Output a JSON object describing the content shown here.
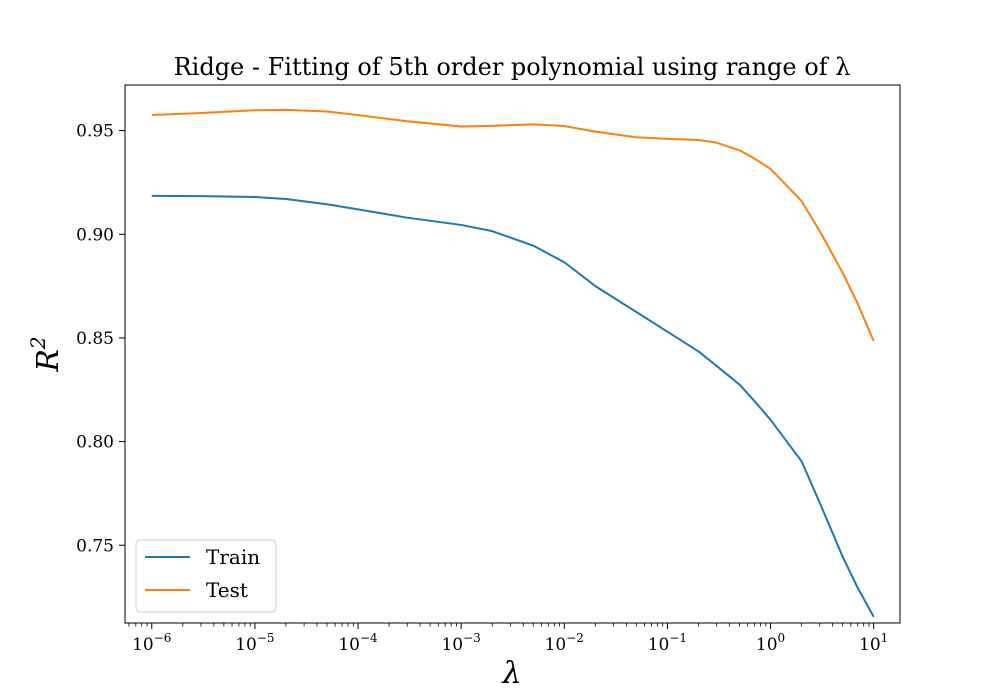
{
  "chart_data": {
    "type": "line",
    "title": "Ridge - Fitting of 5th order polynomial using range of λ",
    "xlabel": "λ",
    "ylabel": "R",
    "ylabel_sup": "2",
    "x_scale": "log",
    "xlim": [
      5.5e-07,
      18
    ],
    "ylim": [
      0.7125,
      0.972
    ],
    "x_ticks": [
      {
        "value": 1e-06,
        "base": "10",
        "exp": "−6"
      },
      {
        "value": 1e-05,
        "base": "10",
        "exp": "−5"
      },
      {
        "value": 0.0001,
        "base": "10",
        "exp": "−4"
      },
      {
        "value": 0.001,
        "base": "10",
        "exp": "−3"
      },
      {
        "value": 0.01,
        "base": "10",
        "exp": "−2"
      },
      {
        "value": 0.1,
        "base": "10",
        "exp": "−1"
      },
      {
        "value": 1,
        "base": "10",
        "exp": "0"
      },
      {
        "value": 10,
        "base": "10",
        "exp": "1"
      }
    ],
    "y_ticks": [
      {
        "value": 0.75,
        "label": "0.75"
      },
      {
        "value": 0.8,
        "label": "0.80"
      },
      {
        "value": 0.85,
        "label": "0.85"
      },
      {
        "value": 0.9,
        "label": "0.90"
      },
      {
        "value": 0.95,
        "label": "0.95"
      }
    ],
    "legend_position": "lower-left",
    "grid": false,
    "series": [
      {
        "name": "Train",
        "color": "#1f77b4",
        "x": [
          1e-06,
          3e-06,
          1e-05,
          2e-05,
          5e-05,
          0.0001,
          0.0003,
          0.001,
          0.002,
          0.005,
          0.01,
          0.02,
          0.05,
          0.1,
          0.2,
          0.3,
          0.5,
          0.7,
          1,
          2,
          3,
          5,
          7,
          10
        ],
        "y": [
          0.9185,
          0.9184,
          0.918,
          0.917,
          0.9145,
          0.912,
          0.908,
          0.9045,
          0.9015,
          0.8945,
          0.8865,
          0.875,
          0.8625,
          0.853,
          0.8435,
          0.8365,
          0.8275,
          0.8195,
          0.8105,
          0.7905,
          0.7705,
          0.7445,
          0.7295,
          0.7155
        ]
      },
      {
        "name": "Test",
        "color": "#ff7f0e",
        "x": [
          1e-06,
          3e-06,
          1e-05,
          2e-05,
          5e-05,
          0.0001,
          0.0003,
          0.001,
          0.002,
          0.005,
          0.01,
          0.02,
          0.05,
          0.1,
          0.2,
          0.3,
          0.5,
          0.7,
          1,
          2,
          3,
          5,
          7,
          10
        ],
        "y": [
          0.9575,
          0.9585,
          0.9598,
          0.96,
          0.9592,
          0.9575,
          0.9545,
          0.952,
          0.9523,
          0.953,
          0.9522,
          0.9495,
          0.9468,
          0.946,
          0.9455,
          0.9442,
          0.9405,
          0.9365,
          0.9315,
          0.916,
          0.9015,
          0.8815,
          0.8665,
          0.8485
        ]
      }
    ]
  }
}
